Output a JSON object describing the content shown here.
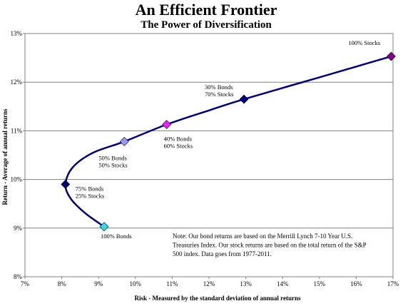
{
  "chart_data": {
    "type": "line",
    "title": "An Efficient Frontier",
    "subtitle": "The Power of Diversification",
    "xlabel": "Risk - Measured by the standard deviation of annual returns",
    "ylabel": "Return - Average of annual returns",
    "xlim": [
      7,
      17
    ],
    "ylim": [
      8,
      13
    ],
    "x_ticks": [
      "7%",
      "8%",
      "9%",
      "10%",
      "11%",
      "12%",
      "13%",
      "14%",
      "15%",
      "16%",
      "17%"
    ],
    "y_ticks": [
      "8%",
      "9%",
      "10%",
      "11%",
      "12%",
      "13%"
    ],
    "grid": "horizontal",
    "curve": {
      "color": "#00006e",
      "x": [
        9.15,
        8.65,
        8.25,
        8.1,
        8.3,
        8.85,
        9.7,
        10.85,
        12.0,
        12.95,
        15.0,
        16.95
      ],
      "y": [
        9.03,
        9.3,
        9.6,
        9.9,
        10.25,
        10.55,
        10.78,
        11.13,
        11.42,
        11.65,
        12.1,
        12.53
      ]
    },
    "points": [
      {
        "x": 9.15,
        "y": 9.03,
        "color": "#33dddd",
        "lines": [
          "100% Bonds"
        ]
      },
      {
        "x": 8.1,
        "y": 9.9,
        "color": "#000070",
        "lines": [
          "75% Bonds",
          "25% Stocks"
        ]
      },
      {
        "x": 9.7,
        "y": 10.78,
        "color": "#9999ee",
        "lines": [
          "50% Bonds",
          "50% Stocks"
        ]
      },
      {
        "x": 10.85,
        "y": 11.13,
        "color": "#ee22ee",
        "lines": [
          "40% Bonds",
          "60% Stocks"
        ]
      },
      {
        "x": 12.95,
        "y": 11.65,
        "color": "#000070",
        "lines": [
          "30% Bonds",
          "70% Stocks"
        ]
      },
      {
        "x": 16.95,
        "y": 12.53,
        "color": "#880077",
        "lines": [
          "100% Stocks"
        ]
      }
    ],
    "note": [
      "Note:  Our bond returns  are based on the Merrill  Lynch  7-10 Year U.S.",
      "Treasuries Index.   Our stock returns are based on the total return of the S&P",
      "500 index.   Data goes from  1977-2011."
    ]
  }
}
